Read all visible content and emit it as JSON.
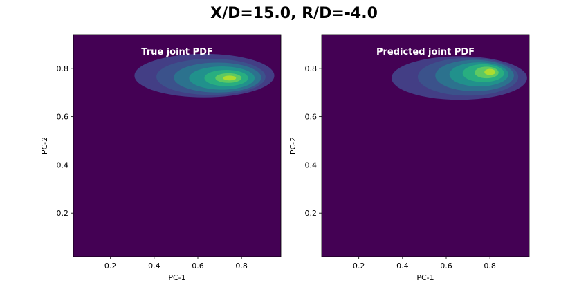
{
  "figure": {
    "title": "X/D=15.0, R/D=-4.0",
    "background_color": "#440154"
  },
  "chart_data": [
    {
      "type": "heatmap",
      "title": "True joint PDF",
      "xlabel": "PC-1",
      "ylabel": "PC-2",
      "xlim": [
        0.03,
        0.98
      ],
      "ylim": [
        0.02,
        0.94
      ],
      "xticks": [
        0.2,
        0.4,
        0.6,
        0.8
      ],
      "yticks": [
        0.2,
        0.4,
        0.6,
        0.8
      ],
      "xtick_labels": [
        "0.2",
        "0.4",
        "0.6",
        "0.8"
      ],
      "ytick_labels": [
        "0.2",
        "0.4",
        "0.6",
        "0.8"
      ],
      "contour_levels": [
        {
          "level": 1,
          "color": "#433e85",
          "center": [
            0.63,
            0.77
          ],
          "rx": 0.32,
          "ry": 0.09
        },
        {
          "level": 2,
          "color": "#3b528b",
          "center": [
            0.66,
            0.765
          ],
          "rx": 0.25,
          "ry": 0.075
        },
        {
          "level": 3,
          "color": "#2c728e",
          "center": [
            0.69,
            0.762
          ],
          "rx": 0.2,
          "ry": 0.062
        },
        {
          "level": 4,
          "color": "#21918c",
          "center": [
            0.71,
            0.76
          ],
          "rx": 0.15,
          "ry": 0.048
        },
        {
          "level": 5,
          "color": "#28ae80",
          "center": [
            0.73,
            0.76
          ],
          "rx": 0.1,
          "ry": 0.034
        },
        {
          "level": 6,
          "color": "#5ec962",
          "center": [
            0.74,
            0.76
          ],
          "rx": 0.06,
          "ry": 0.02
        },
        {
          "level": 7,
          "color": "#addc30",
          "center": [
            0.745,
            0.76
          ],
          "rx": 0.03,
          "ry": 0.01
        }
      ]
    },
    {
      "type": "heatmap",
      "title": "Predicted joint PDF",
      "xlabel": "PC-1",
      "ylabel": "PC-2",
      "xlim": [
        0.03,
        0.98
      ],
      "ylim": [
        0.02,
        0.94
      ],
      "xticks": [
        0.2,
        0.4,
        0.6,
        0.8
      ],
      "yticks": [
        0.2,
        0.4,
        0.6,
        0.8
      ],
      "xtick_labels": [
        "0.2",
        "0.4",
        "0.6",
        "0.8"
      ],
      "ytick_labels": [
        "0.2",
        "0.4",
        "0.6",
        "0.8"
      ],
      "contour_levels": [
        {
          "level": 1,
          "color": "#433e85",
          "center": [
            0.66,
            0.76
          ],
          "rx": 0.31,
          "ry": 0.09
        },
        {
          "level": 2,
          "color": "#3b528b",
          "center": [
            0.7,
            0.765
          ],
          "rx": 0.23,
          "ry": 0.078
        },
        {
          "level": 3,
          "color": "#2c728e",
          "center": [
            0.73,
            0.77
          ],
          "rx": 0.18,
          "ry": 0.065
        },
        {
          "level": 4,
          "color": "#21918c",
          "center": [
            0.75,
            0.775
          ],
          "rx": 0.135,
          "ry": 0.05
        },
        {
          "level": 5,
          "color": "#28ae80",
          "center": [
            0.77,
            0.78
          ],
          "rx": 0.095,
          "ry": 0.037
        },
        {
          "level": 6,
          "color": "#5ec962",
          "center": [
            0.785,
            0.783
          ],
          "rx": 0.055,
          "ry": 0.024
        },
        {
          "level": 7,
          "color": "#addc30",
          "center": [
            0.8,
            0.785
          ],
          "rx": 0.025,
          "ry": 0.013
        }
      ]
    }
  ]
}
